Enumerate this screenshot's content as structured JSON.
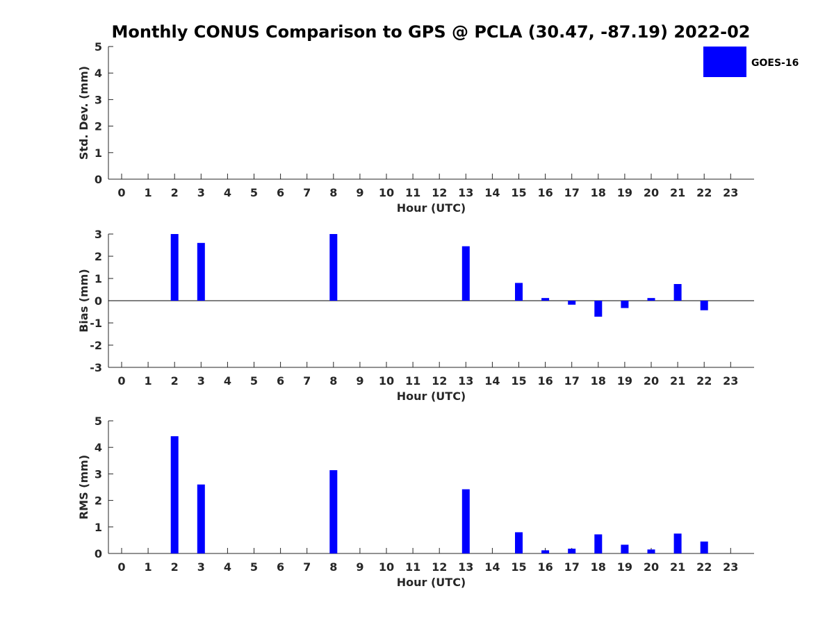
{
  "title": "Monthly CONUS Comparison to GPS @ PCLA (30.47, -87.19) 2022-02",
  "legend": {
    "label": "GOES-16",
    "placement": "top-right"
  },
  "colors": {
    "bar": "#0000ff",
    "axis": "#262626"
  },
  "chart_data": [
    {
      "type": "bar",
      "ylabel": "Std. Dev. (mm)",
      "xlabel": "Hour (UTC)",
      "ylim": [
        0,
        5
      ],
      "yticks": [
        "0",
        "1",
        "2",
        "3",
        "4",
        "5"
      ],
      "xticks": [
        "0",
        "1",
        "2",
        "3",
        "4",
        "5",
        "6",
        "7",
        "8",
        "9",
        "10",
        "11",
        "12",
        "13",
        "14",
        "15",
        "16",
        "17",
        "18",
        "19",
        "20",
        "21",
        "22",
        "23"
      ],
      "series": [
        {
          "name": "GOES-16",
          "values": []
        }
      ]
    },
    {
      "type": "bar",
      "ylabel": "Bias (mm)",
      "xlabel": "Hour (UTC)",
      "ylim": [
        -3,
        3
      ],
      "yticks": [
        "-3",
        "-2",
        "-1",
        "0",
        "1",
        "2",
        "3"
      ],
      "xticks": [
        "0",
        "1",
        "2",
        "3",
        "4",
        "5",
        "6",
        "7",
        "8",
        "9",
        "10",
        "11",
        "12",
        "13",
        "14",
        "15",
        "16",
        "17",
        "18",
        "19",
        "20",
        "21",
        "22",
        "23"
      ],
      "series": [
        {
          "name": "GOES-16",
          "values": [
            {
              "x": 2,
              "y": 3.0
            },
            {
              "x": 3,
              "y": 2.6
            },
            {
              "x": 8,
              "y": 3.0
            },
            {
              "x": 13,
              "y": 2.45
            },
            {
              "x": 15,
              "y": 0.8
            },
            {
              "x": 16,
              "y": 0.12
            },
            {
              "x": 17,
              "y": -0.18
            },
            {
              "x": 18,
              "y": -0.72
            },
            {
              "x": 19,
              "y": -0.33
            },
            {
              "x": 20,
              "y": 0.12
            },
            {
              "x": 21,
              "y": 0.75
            },
            {
              "x": 22,
              "y": -0.43
            }
          ]
        }
      ]
    },
    {
      "type": "bar",
      "ylabel": "RMS (mm)",
      "xlabel": "Hour (UTC)",
      "ylim": [
        0,
        5
      ],
      "yticks": [
        "0",
        "1",
        "2",
        "3",
        "4",
        "5"
      ],
      "xticks": [
        "0",
        "1",
        "2",
        "3",
        "4",
        "5",
        "6",
        "7",
        "8",
        "9",
        "10",
        "11",
        "12",
        "13",
        "14",
        "15",
        "16",
        "17",
        "18",
        "19",
        "20",
        "21",
        "22",
        "23"
      ],
      "series": [
        {
          "name": "GOES-16",
          "values": [
            {
              "x": 2,
              "y": 4.42
            },
            {
              "x": 3,
              "y": 2.6
            },
            {
              "x": 8,
              "y": 3.14
            },
            {
              "x": 13,
              "y": 2.42
            },
            {
              "x": 15,
              "y": 0.8
            },
            {
              "x": 16,
              "y": 0.12
            },
            {
              "x": 17,
              "y": 0.18
            },
            {
              "x": 18,
              "y": 0.72
            },
            {
              "x": 19,
              "y": 0.33
            },
            {
              "x": 20,
              "y": 0.15
            },
            {
              "x": 21,
              "y": 0.75
            },
            {
              "x": 22,
              "y": 0.45
            }
          ]
        }
      ]
    }
  ]
}
